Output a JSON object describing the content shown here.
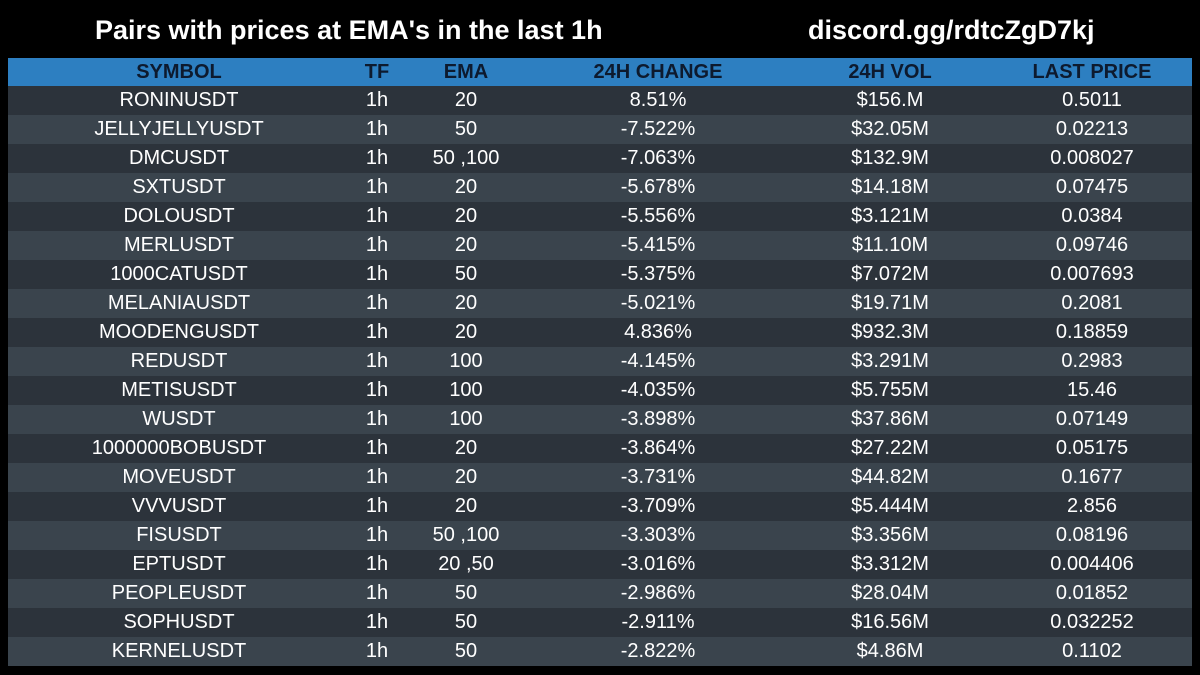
{
  "header": {
    "title": "Pairs with prices at EMA's in the last 1h",
    "link": "discord.gg/rdtcZgD7kj"
  },
  "colors": {
    "background": "#000000",
    "header_row": "#2d7fc1",
    "row_dark": "#2c333b",
    "row_light": "#3a444d",
    "text": "#ffffff"
  },
  "table": {
    "columns": [
      "SYMBOL",
      "TF",
      "EMA",
      "24H CHANGE",
      "24H VOL",
      "LAST PRICE"
    ],
    "rows": [
      [
        "RONINUSDT",
        "1h",
        "20",
        "8.51%",
        "$156.M",
        "0.5011"
      ],
      [
        "JELLYJELLYUSDT",
        "1h",
        "50",
        "-7.522%",
        "$32.05M",
        "0.02213"
      ],
      [
        "DMCUSDT",
        "1h",
        "50 ,100",
        "-7.063%",
        "$132.9M",
        "0.008027"
      ],
      [
        "SXTUSDT",
        "1h",
        "20",
        "-5.678%",
        "$14.18M",
        "0.07475"
      ],
      [
        "DOLOUSDT",
        "1h",
        "20",
        "-5.556%",
        "$3.121M",
        "0.0384"
      ],
      [
        "MERLUSDT",
        "1h",
        "20",
        "-5.415%",
        "$11.10M",
        "0.09746"
      ],
      [
        "1000CATUSDT",
        "1h",
        "50",
        "-5.375%",
        "$7.072M",
        "0.007693"
      ],
      [
        "MELANIAUSDT",
        "1h",
        "20",
        "-5.021%",
        "$19.71M",
        "0.2081"
      ],
      [
        "MOODENGUSDT",
        "1h",
        "20",
        "4.836%",
        "$932.3M",
        "0.18859"
      ],
      [
        "REDUSDT",
        "1h",
        "100",
        "-4.145%",
        "$3.291M",
        "0.2983"
      ],
      [
        "METISUSDT",
        "1h",
        "100",
        "-4.035%",
        "$5.755M",
        "15.46"
      ],
      [
        "WUSDT",
        "1h",
        "100",
        "-3.898%",
        "$37.86M",
        "0.07149"
      ],
      [
        "1000000BOBUSDT",
        "1h",
        "20",
        "-3.864%",
        "$27.22M",
        "0.05175"
      ],
      [
        "MOVEUSDT",
        "1h",
        "20",
        "-3.731%",
        "$44.82M",
        "0.1677"
      ],
      [
        "VVVUSDT",
        "1h",
        "20",
        "-3.709%",
        "$5.444M",
        "2.856"
      ],
      [
        "FISUSDT",
        "1h",
        "50 ,100",
        "-3.303%",
        "$3.356M",
        "0.08196"
      ],
      [
        "EPTUSDT",
        "1h",
        "20 ,50",
        "-3.016%",
        "$3.312M",
        "0.004406"
      ],
      [
        "PEOPLEUSDT",
        "1h",
        "50",
        "-2.986%",
        "$28.04M",
        "0.01852"
      ],
      [
        "SOPHUSDT",
        "1h",
        "50",
        "-2.911%",
        "$16.56M",
        "0.032252"
      ],
      [
        "KERNELUSDT",
        "1h",
        "50",
        "-2.822%",
        "$4.86M",
        "0.1102"
      ]
    ]
  }
}
